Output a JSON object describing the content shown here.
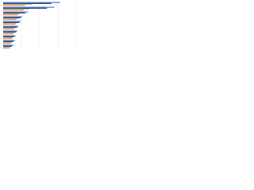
{
  "chart_data": {
    "type": "hbar",
    "categories": [
      null,
      null,
      null,
      null,
      null,
      null,
      null,
      null,
      null,
      null
    ],
    "series": [
      {
        "color": "#2f6fd1",
        "values": [
          78,
          70,
          34,
          26,
          24,
          21,
          19,
          17,
          16,
          14
        ]
      },
      {
        "color": "#1b2a48",
        "values": [
          66,
          60,
          30,
          24,
          22,
          19,
          18,
          15,
          14,
          12
        ]
      },
      {
        "color": "#b9b9b9",
        "values": [
          40,
          36,
          22,
          20,
          18,
          16,
          15,
          13,
          12,
          10
        ]
      },
      {
        "color": "#e8832a",
        "values": [
          30,
          28,
          20,
          18,
          17,
          15,
          14,
          12,
          11,
          9
        ]
      }
    ],
    "xlim": [
      0,
      100
    ],
    "xticks": [
      0,
      25,
      50,
      75,
      100
    ],
    "grid": true
  }
}
